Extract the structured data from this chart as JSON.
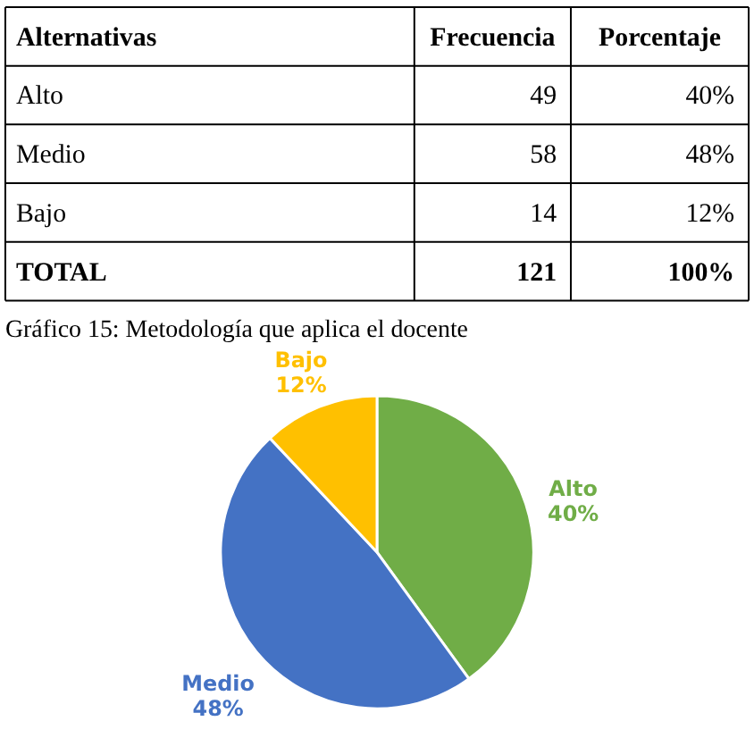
{
  "chart_data": [
    {
      "type": "other",
      "annotations": [
        "Alternativas",
        "Frecuencia",
        "Porcentaje",
        "Alto",
        "49",
        "40%",
        "Medio",
        "58",
        "48%",
        "Bajo",
        "14",
        "12%",
        "TOTAL",
        "121",
        "100%"
      ]
    },
    {
      "type": "pie",
      "title": "Gráfico 15: Metodología que aplica el docente",
      "categories": [
        "Alto",
        "Medio",
        "Bajo"
      ],
      "values": [
        40,
        48,
        12
      ],
      "colors": [
        "#70ad47",
        "#4472c4",
        "#ffc000"
      ],
      "value_labels": [
        "40%",
        "48%",
        "12%"
      ],
      "legend": false
    }
  ]
}
